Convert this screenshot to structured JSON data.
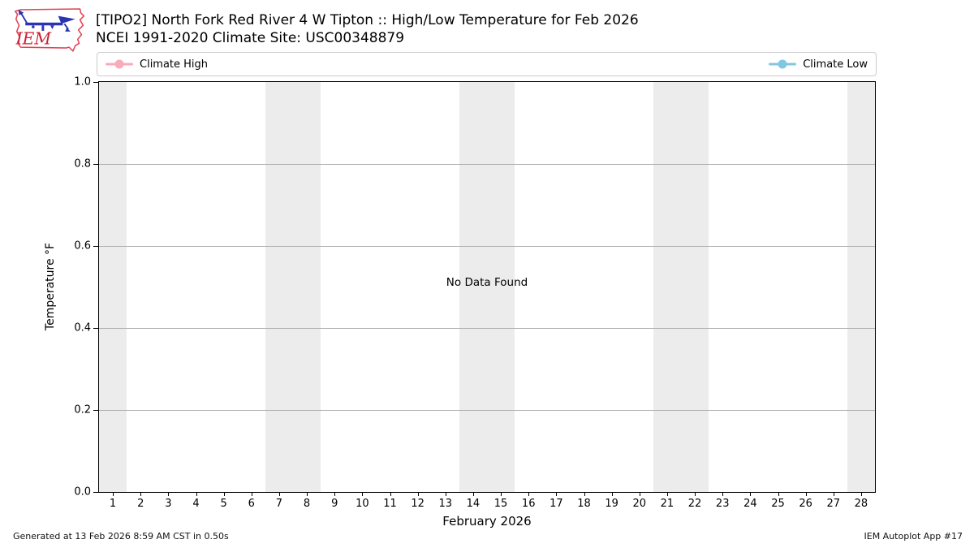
{
  "header": {
    "title": "[TIPO2] North Fork Red River 4 W Tipton :: High/Low Temperature for Feb 2026",
    "subtitle": "NCEI 1991-2020 Climate Site: USC00348879",
    "logo_text": "IEM"
  },
  "legend": {
    "high_label": "Climate High",
    "low_label": "Climate Low",
    "high_color": "#f8acba",
    "low_color": "#82c6e2"
  },
  "chart_data": {
    "type": "line",
    "title": "[TIPO2] North Fork Red River 4 W Tipton :: High/Low Temperature for Feb 2026",
    "subtitle": "NCEI 1991-2020 Climate Site: USC00348879",
    "xlabel": "February 2026",
    "ylabel": "Temperature °F",
    "no_data_message": "No Data Found",
    "xlim": [
      0.5,
      28.5
    ],
    "ylim": [
      0.0,
      1.0
    ],
    "x_ticks": [
      1,
      2,
      3,
      4,
      5,
      6,
      7,
      8,
      9,
      10,
      11,
      12,
      13,
      14,
      15,
      16,
      17,
      18,
      19,
      20,
      21,
      22,
      23,
      24,
      25,
      26,
      27,
      28
    ],
    "y_ticks": [
      {
        "value": 1.0,
        "label": "1.0"
      },
      {
        "value": 0.8,
        "label": "0.8"
      },
      {
        "value": 0.6,
        "label": "0.6"
      },
      {
        "value": 0.4,
        "label": "0.4"
      },
      {
        "value": 0.2,
        "label": "0.2"
      },
      {
        "value": 0.0,
        "label": "0.0"
      }
    ],
    "grid": "horizontal",
    "legend_position": "top, spanning plot width, high left / low right",
    "weekend_bands": [
      [
        1,
        1
      ],
      [
        7,
        8
      ],
      [
        14,
        15
      ],
      [
        21,
        22
      ],
      [
        28,
        28
      ]
    ],
    "band_color": "#ececec",
    "series": [
      {
        "name": "Climate High",
        "color": "#f8acba",
        "values": []
      },
      {
        "name": "Climate Low",
        "color": "#82c6e2",
        "values": []
      }
    ]
  },
  "footer": {
    "left": "Generated at 13 Feb 2026 8:59 AM CST in 0.50s",
    "right": "IEM Autoplot App #17"
  }
}
